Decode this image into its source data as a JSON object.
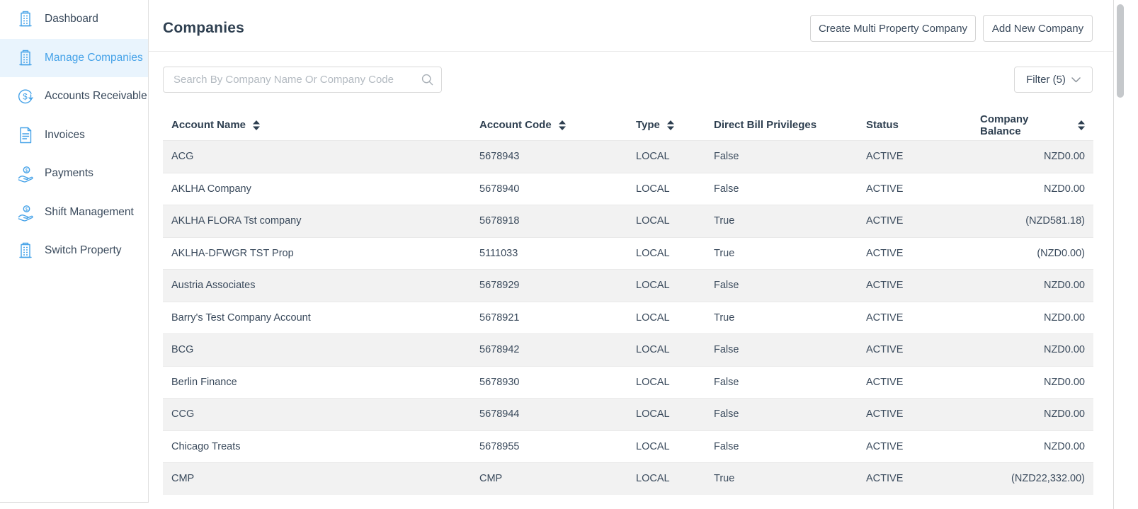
{
  "sidebar": {
    "items": [
      {
        "label": "Dashboard",
        "icon": "building",
        "active": false
      },
      {
        "label": "Manage Companies",
        "icon": "building",
        "active": true
      },
      {
        "label": "Accounts Receivable",
        "icon": "dollar-circle",
        "active": false
      },
      {
        "label": "Invoices",
        "icon": "invoice",
        "active": false
      },
      {
        "label": "Payments",
        "icon": "hand-coin",
        "active": false
      },
      {
        "label": "Shift Management",
        "icon": "hand-coin",
        "active": false
      },
      {
        "label": "Switch Property",
        "icon": "building",
        "active": false
      }
    ]
  },
  "header": {
    "title": "Companies",
    "create_multi_button": "Create Multi Property Company",
    "add_new_button": "Add New Company"
  },
  "toolbar": {
    "search_placeholder": "Search By Company Name Or Company Code",
    "filter_label": "Filter (5)"
  },
  "table": {
    "columns": [
      {
        "label": "Account Name",
        "sortable": true,
        "align": "left"
      },
      {
        "label": "Account Code",
        "sortable": true,
        "align": "left"
      },
      {
        "label": "Type",
        "sortable": true,
        "align": "left"
      },
      {
        "label": "Direct Bill Privileges",
        "sortable": false,
        "align": "left"
      },
      {
        "label": "Status",
        "sortable": false,
        "align": "left"
      },
      {
        "label": "Company Balance",
        "sortable": true,
        "align": "right"
      }
    ],
    "rows": [
      {
        "name": "ACG",
        "code": "5678943",
        "type": "LOCAL",
        "direct_bill": "False",
        "status": "ACTIVE",
        "balance": "NZD0.00"
      },
      {
        "name": "AKLHA Company",
        "code": "5678940",
        "type": "LOCAL",
        "direct_bill": "False",
        "status": "ACTIVE",
        "balance": "NZD0.00"
      },
      {
        "name": "AKLHA FLORA Tst company",
        "code": "5678918",
        "type": "LOCAL",
        "direct_bill": "True",
        "status": "ACTIVE",
        "balance": "(NZD581.18)"
      },
      {
        "name": "AKLHA-DFWGR TST Prop",
        "code": "5111033",
        "type": "LOCAL",
        "direct_bill": "True",
        "status": "ACTIVE",
        "balance": "(NZD0.00)"
      },
      {
        "name": "Austria Associates",
        "code": "5678929",
        "type": "LOCAL",
        "direct_bill": "False",
        "status": "ACTIVE",
        "balance": "NZD0.00"
      },
      {
        "name": "Barry's Test Company Account",
        "code": "5678921",
        "type": "LOCAL",
        "direct_bill": "True",
        "status": "ACTIVE",
        "balance": "NZD0.00"
      },
      {
        "name": "BCG",
        "code": "5678942",
        "type": "LOCAL",
        "direct_bill": "False",
        "status": "ACTIVE",
        "balance": "NZD0.00"
      },
      {
        "name": "Berlin Finance",
        "code": "5678930",
        "type": "LOCAL",
        "direct_bill": "False",
        "status": "ACTIVE",
        "balance": "NZD0.00"
      },
      {
        "name": "CCG",
        "code": "5678944",
        "type": "LOCAL",
        "direct_bill": "False",
        "status": "ACTIVE",
        "balance": "NZD0.00"
      },
      {
        "name": "Chicago Treats",
        "code": "5678955",
        "type": "LOCAL",
        "direct_bill": "False",
        "status": "ACTIVE",
        "balance": "NZD0.00"
      },
      {
        "name": "CMP",
        "code": "CMP",
        "type": "LOCAL",
        "direct_bill": "True",
        "status": "ACTIVE",
        "balance": "(NZD22,332.00)"
      }
    ]
  },
  "colors": {
    "accent_blue": "#45a2e8",
    "active_item_bg": "#e9f4fd",
    "row_stripe": "#f2f2f2",
    "text_dark": "#2e3f50",
    "border": "#e0e0e0"
  }
}
